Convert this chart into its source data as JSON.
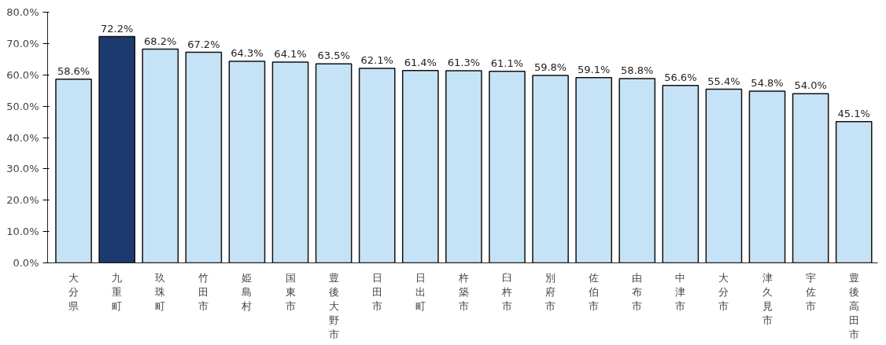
{
  "chart_data": {
    "type": "bar",
    "categories": [
      "大分県",
      "九重町",
      "玖珠町",
      "竹田市",
      "姫島村",
      "国東市",
      "豊後大野市",
      "日田市",
      "日出町",
      "杵築市",
      "臼杵市",
      "別府市",
      "佐伯市",
      "由布市",
      "中津市",
      "大分市",
      "津久見市",
      "宇佐市",
      "豊後高田市"
    ],
    "values": [
      58.6,
      72.2,
      68.2,
      67.2,
      64.3,
      64.1,
      63.5,
      62.1,
      61.4,
      61.3,
      61.1,
      59.8,
      59.1,
      58.8,
      56.6,
      55.4,
      54.8,
      54.0,
      45.1
    ],
    "colors": [
      "#c6e2f7",
      "#1c3a6e",
      "#c6e2f7",
      "#c6e2f7",
      "#c6e2f7",
      "#c6e2f7",
      "#c6e2f7",
      "#c6e2f7",
      "#c6e2f7",
      "#c6e2f7",
      "#c6e2f7",
      "#c6e2f7",
      "#c6e2f7",
      "#c6e2f7",
      "#c6e2f7",
      "#c6e2f7",
      "#c6e2f7",
      "#c6e2f7",
      "#c6e2f7"
    ],
    "value_labels": [
      "58.6%",
      "72.2%",
      "68.2%",
      "67.2%",
      "64.3%",
      "64.1%",
      "63.5%",
      "62.1%",
      "61.4%",
      "61.3%",
      "61.1%",
      "59.8%",
      "59.1%",
      "58.8%",
      "56.6%",
      "55.4%",
      "54.8%",
      "54.0%",
      "45.1%"
    ],
    "ylim": [
      0,
      80
    ],
    "yticks": [
      {
        "value": 0,
        "label": "0.0%"
      },
      {
        "value": 10,
        "label": "10.0%"
      },
      {
        "value": 20,
        "label": "20.0%"
      },
      {
        "value": 30,
        "label": "30.0%"
      },
      {
        "value": 40,
        "label": "40.0%"
      },
      {
        "value": 50,
        "label": "50.0%"
      },
      {
        "value": 60,
        "label": "60.0%"
      },
      {
        "value": 70,
        "label": "70.0%"
      },
      {
        "value": 80,
        "label": "80.0%"
      }
    ],
    "grid": false
  }
}
